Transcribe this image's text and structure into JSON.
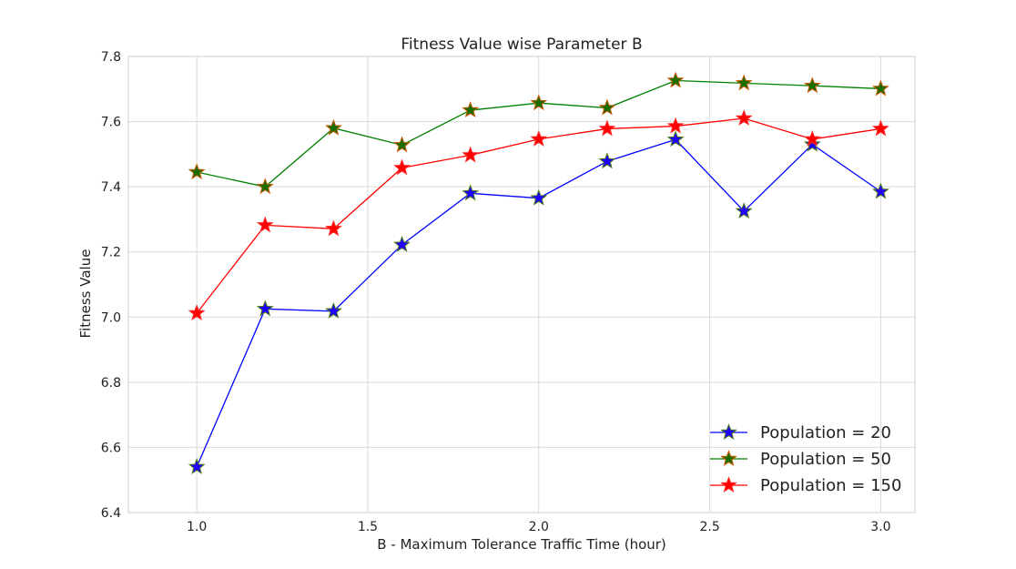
{
  "chart_data": {
    "type": "line",
    "title": "Fitness Value wise Parameter B",
    "xlabel": "B - Maximum Tolerance Traffic Time (hour)",
    "ylabel": "Fitness Value",
    "x": [
      1.0,
      1.2,
      1.4,
      1.6,
      1.8,
      2.0,
      2.2,
      2.4,
      2.6,
      2.8,
      3.0
    ],
    "xlim": [
      0.8,
      3.1
    ],
    "ylim": [
      6.4,
      7.8
    ],
    "xticks": [
      1.0,
      1.5,
      2.0,
      2.5,
      3.0
    ],
    "xtick_labels": [
      "1.0",
      "1.5",
      "2.0",
      "2.5",
      "3.0"
    ],
    "yticks": [
      6.4,
      6.6,
      6.8,
      7.0,
      7.2,
      7.4,
      7.6,
      7.8
    ],
    "ytick_labels": [
      "6.4",
      "6.6",
      "6.8",
      "7.0",
      "7.2",
      "7.4",
      "7.6",
      "7.8"
    ],
    "grid": true,
    "legend_position": "bottom-right",
    "marker": "star",
    "series": [
      {
        "name": "Population = 20",
        "line_color": "#0000ff",
        "marker_fill": "#2200ff",
        "marker_edge": "#4a7a1a",
        "values": [
          6.54,
          7.025,
          7.018,
          7.222,
          7.38,
          7.365,
          7.478,
          7.545,
          7.325,
          7.53,
          7.385
        ]
      },
      {
        "name": "Population = 50",
        "line_color": "#008000",
        "marker_fill": "#1a6e00",
        "marker_edge": "#c85a00",
        "values": [
          7.445,
          7.4,
          7.58,
          7.528,
          7.635,
          7.657,
          7.642,
          7.726,
          7.718,
          7.71,
          7.701
        ]
      },
      {
        "name": "Population = 150",
        "line_color": "#ff0000",
        "marker_fill": "#ff0000",
        "marker_edge": "#ff2a2a",
        "values": [
          7.012,
          7.282,
          7.271,
          7.458,
          7.497,
          7.546,
          7.578,
          7.586,
          7.61,
          7.546,
          7.578
        ]
      }
    ]
  }
}
